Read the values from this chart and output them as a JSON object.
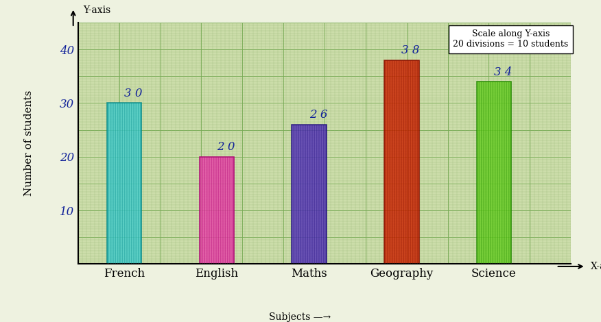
{
  "categories": [
    "French",
    "English",
    "Maths",
    "Geography",
    "Science"
  ],
  "values": [
    30,
    20,
    26,
    38,
    34
  ],
  "bar_colors": [
    "#44CCCC",
    "#E844A8",
    "#5535B8",
    "#CC2200",
    "#66CC22"
  ],
  "bar_edge_colors": [
    "#008888",
    "#AA0070",
    "#221080",
    "#881000",
    "#228800"
  ],
  "plot_bg_color": "#CCDDAA",
  "outer_bg_color": "#EEF2E0",
  "grid_minor_color": "#99BB77",
  "grid_major_color": "#77AA55",
  "ylabel": "Number of students",
  "xlabel": "Subjects",
  "xaxis_label": "X-axis",
  "yaxis_label": "Y-axis",
  "yticks": [
    10,
    20,
    30,
    40
  ],
  "ylim": [
    0,
    45
  ],
  "annotation_color": "#112299",
  "annotation_fontsize": 12,
  "scale_note_line1": "Scale along Y-axis",
  "scale_note_line2": "20 divisions = 10 students",
  "axis_label_fontsize": 11,
  "tick_label_fontsize": 12,
  "bar_width": 0.45,
  "bar_positions": [
    0.7,
    1.9,
    3.1,
    4.3,
    5.5
  ]
}
